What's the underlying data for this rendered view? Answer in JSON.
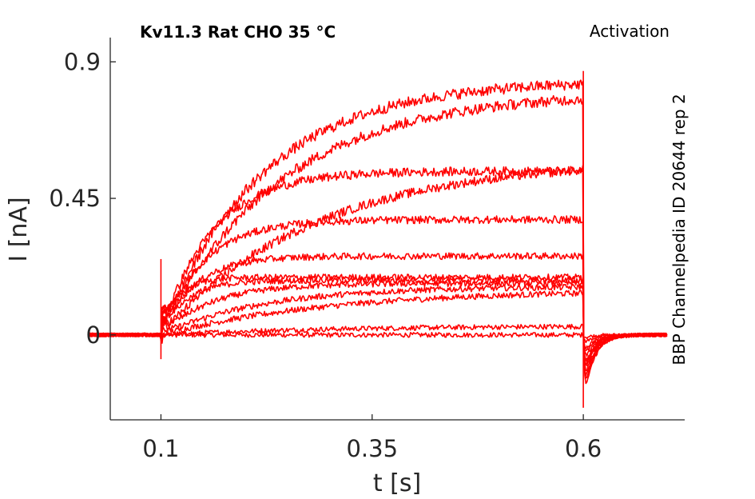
{
  "chart_data": {
    "type": "line",
    "title": "Kv11.3  Rat  CHO  35 °C",
    "subtitle": "Activation",
    "side_annotation": "BBP Channelpedia ID 20644 rep 2",
    "xlabel": "t [s]",
    "ylabel": "I [nA]",
    "xlim": [
      0.04,
      0.72
    ],
    "ylim": [
      -0.28,
      0.98
    ],
    "xticks": [
      0.1,
      0.35,
      0.6
    ],
    "xtick_labels": [
      "0.1",
      "0.35",
      "0.6"
    ],
    "yticks": [
      0,
      0.45,
      0.9
    ],
    "ytick_labels": [
      "0",
      "0.45",
      "0.9"
    ],
    "grid": false,
    "line_color": "#ff0000",
    "stimulus": {
      "onset": 0.1,
      "offset": 0.6,
      "trace_start": 0.015,
      "trace_end": 0.7
    },
    "series": [
      {
        "steady": 0.0,
        "tau": 0.05,
        "peak": 0.0,
        "tail": -0.01
      },
      {
        "steady": 0.03,
        "tau": 0.2,
        "peak": 0.0,
        "tail": -0.03
      },
      {
        "steady": 0.15,
        "tau": 0.2,
        "peak": 0.03,
        "tail": -0.06
      },
      {
        "steady": 0.16,
        "tau": 0.12,
        "peak": 0.05,
        "tail": -0.08
      },
      {
        "steady": 0.17,
        "tau": 0.06,
        "peak": 0.08,
        "tail": -0.1
      },
      {
        "steady": 0.18,
        "tau": 0.03,
        "peak": 0.1,
        "tail": -0.12
      },
      {
        "steady": 0.19,
        "tau": 0.02,
        "peak": 0.12,
        "tail": -0.13
      },
      {
        "steady": 0.26,
        "tau": 0.04,
        "peak": 0.12,
        "tail": -0.14
      },
      {
        "steady": 0.38,
        "tau": 0.05,
        "peak": 0.1,
        "tail": -0.15
      },
      {
        "steady": 0.54,
        "tau": 0.06,
        "peak": 0.08,
        "tail": -0.17
      },
      {
        "steady": 0.58,
        "tau": 0.18,
        "peak": 0.06,
        "tail": -0.19
      },
      {
        "steady": 0.8,
        "tau": 0.14,
        "peak": 0.05,
        "tail": -0.21
      },
      {
        "steady": 0.84,
        "tau": 0.12,
        "peak": 0.04,
        "tail": -0.23
      }
    ]
  }
}
